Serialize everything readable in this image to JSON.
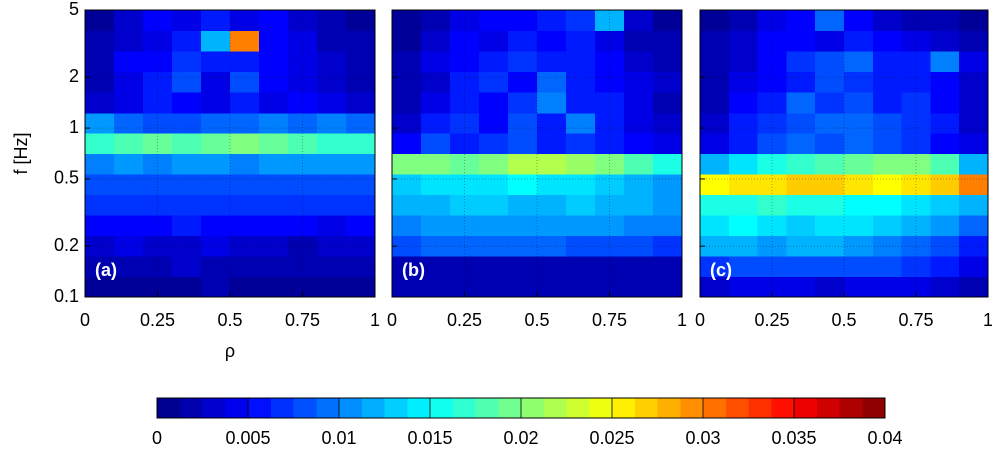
{
  "chart_data": [
    {
      "type": "heatmap",
      "label": "(a)",
      "ylabel": "f [Hz]",
      "xlabel": "ρ",
      "colormap": "jet",
      "log_y": true,
      "grid": true,
      "xlim": [
        0,
        1
      ],
      "ylim": [
        0.1,
        5
      ],
      "xticks": [
        0,
        0.25,
        0.5,
        0.75,
        1
      ],
      "yticks": [
        0.1,
        0.2,
        0.5,
        1,
        2,
        5
      ],
      "show_ytick_labels": true,
      "zlim": [
        0,
        0.04
      ],
      "xbins": [
        0,
        0.1,
        0.2,
        0.3,
        0.4,
        0.5,
        0.6,
        0.7,
        0.8,
        0.9,
        1
      ],
      "ybins": [
        0.1,
        0.132,
        0.175,
        0.231,
        0.305,
        0.404,
        0.534,
        0.706,
        0.933,
        1.23,
        1.63,
        2.16,
        2.85,
        3.77,
        5
      ],
      "z": [
        [
          0.001,
          0.001,
          0.001,
          0.001,
          0.002,
          0.001,
          0.001,
          0.001,
          0.001,
          0.001
        ],
        [
          0.002,
          0.002,
          0.002,
          0.003,
          0.002,
          0.002,
          0.002,
          0.002,
          0.002,
          0.002
        ],
        [
          0.003,
          0.004,
          0.003,
          0.003,
          0.004,
          0.003,
          0.003,
          0.002,
          0.003,
          0.003
        ],
        [
          0.005,
          0.005,
          0.005,
          0.006,
          0.005,
          0.005,
          0.005,
          0.005,
          0.004,
          0.005
        ],
        [
          0.007,
          0.007,
          0.007,
          0.007,
          0.007,
          0.007,
          0.007,
          0.007,
          0.007,
          0.007
        ],
        [
          0.008,
          0.008,
          0.008,
          0.008,
          0.008,
          0.008,
          0.008,
          0.008,
          0.008,
          0.008
        ],
        [
          0.01,
          0.011,
          0.01,
          0.011,
          0.011,
          0.01,
          0.011,
          0.011,
          0.011,
          0.011
        ],
        [
          0.017,
          0.018,
          0.019,
          0.018,
          0.019,
          0.02,
          0.019,
          0.018,
          0.017,
          0.017
        ],
        [
          0.011,
          0.009,
          0.008,
          0.008,
          0.009,
          0.009,
          0.01,
          0.009,
          0.01,
          0.009
        ],
        [
          0.003,
          0.004,
          0.006,
          0.005,
          0.004,
          0.006,
          0.004,
          0.005,
          0.004,
          0.003
        ],
        [
          0.002,
          0.004,
          0.006,
          0.008,
          0.004,
          0.008,
          0.005,
          0.004,
          0.003,
          0.002
        ],
        [
          0.002,
          0.005,
          0.005,
          0.007,
          0.006,
          0.006,
          0.005,
          0.004,
          0.003,
          0.002
        ],
        [
          0.002,
          0.003,
          0.004,
          0.006,
          0.012,
          0.03,
          0.005,
          0.004,
          0.002,
          0.002
        ],
        [
          0.001,
          0.003,
          0.005,
          0.004,
          0.006,
          0.004,
          0.005,
          0.003,
          0.002,
          0.001
        ]
      ]
    },
    {
      "type": "heatmap",
      "label": "(b)",
      "colormap": "jet",
      "log_y": true,
      "grid": true,
      "xlim": [
        0,
        1
      ],
      "ylim": [
        0.1,
        5
      ],
      "xticks": [
        0,
        0.25,
        0.5,
        0.75,
        1
      ],
      "yticks": [
        0.1,
        0.2,
        0.5,
        1,
        2,
        5
      ],
      "show_ytick_labels": false,
      "zlim": [
        0,
        0.04
      ],
      "xbins": [
        0,
        0.1,
        0.2,
        0.3,
        0.4,
        0.5,
        0.6,
        0.7,
        0.8,
        0.9,
        1
      ],
      "ybins": [
        0.1,
        0.132,
        0.175,
        0.231,
        0.305,
        0.404,
        0.534,
        0.706,
        0.933,
        1.23,
        1.63,
        2.16,
        2.85,
        3.77,
        5
      ],
      "z": [
        [
          0.002,
          0.002,
          0.002,
          0.002,
          0.002,
          0.002,
          0.002,
          0.002,
          0.002,
          0.002
        ],
        [
          0.002,
          0.002,
          0.002,
          0.002,
          0.002,
          0.002,
          0.002,
          0.002,
          0.002,
          0.002
        ],
        [
          0.008,
          0.009,
          0.009,
          0.009,
          0.009,
          0.009,
          0.008,
          0.008,
          0.008,
          0.007
        ],
        [
          0.01,
          0.011,
          0.011,
          0.011,
          0.011,
          0.011,
          0.011,
          0.011,
          0.01,
          0.01
        ],
        [
          0.012,
          0.012,
          0.013,
          0.013,
          0.012,
          0.012,
          0.013,
          0.012,
          0.012,
          0.011
        ],
        [
          0.013,
          0.014,
          0.014,
          0.014,
          0.015,
          0.014,
          0.014,
          0.013,
          0.012,
          0.011
        ],
        [
          0.02,
          0.02,
          0.019,
          0.02,
          0.022,
          0.022,
          0.021,
          0.02,
          0.018,
          0.016
        ],
        [
          0.005,
          0.008,
          0.006,
          0.007,
          0.008,
          0.006,
          0.007,
          0.006,
          0.005,
          0.004
        ],
        [
          0.003,
          0.006,
          0.007,
          0.005,
          0.008,
          0.006,
          0.01,
          0.006,
          0.004,
          0.003
        ],
        [
          0.002,
          0.004,
          0.006,
          0.005,
          0.007,
          0.01,
          0.006,
          0.006,
          0.004,
          0.002
        ],
        [
          0.002,
          0.003,
          0.006,
          0.007,
          0.005,
          0.009,
          0.006,
          0.005,
          0.004,
          0.003
        ],
        [
          0.002,
          0.004,
          0.005,
          0.006,
          0.007,
          0.006,
          0.006,
          0.005,
          0.003,
          0.002
        ],
        [
          0.001,
          0.003,
          0.005,
          0.004,
          0.006,
          0.005,
          0.006,
          0.004,
          0.002,
          0.002
        ],
        [
          0.001,
          0.002,
          0.004,
          0.005,
          0.005,
          0.006,
          0.007,
          0.012,
          0.003,
          0.001
        ]
      ]
    },
    {
      "type": "heatmap",
      "label": "(c)",
      "colormap": "jet",
      "log_y": true,
      "grid": true,
      "xlim": [
        0,
        1
      ],
      "ylim": [
        0.1,
        5
      ],
      "xticks": [
        0,
        0.25,
        0.5,
        0.75,
        1
      ],
      "yticks": [
        0.1,
        0.2,
        0.5,
        1,
        2,
        5
      ],
      "show_ytick_labels": false,
      "zlim": [
        0,
        0.04
      ],
      "xbins": [
        0,
        0.1,
        0.2,
        0.3,
        0.4,
        0.5,
        0.6,
        0.7,
        0.8,
        0.9,
        1
      ],
      "ybins": [
        0.1,
        0.132,
        0.175,
        0.231,
        0.305,
        0.404,
        0.534,
        0.706,
        0.933,
        1.23,
        1.63,
        2.16,
        2.85,
        3.77,
        5
      ],
      "z": [
        [
          0.003,
          0.004,
          0.004,
          0.004,
          0.003,
          0.004,
          0.004,
          0.004,
          0.003,
          0.002
        ],
        [
          0.007,
          0.008,
          0.008,
          0.008,
          0.008,
          0.008,
          0.008,
          0.007,
          0.006,
          0.004
        ],
        [
          0.012,
          0.012,
          0.011,
          0.012,
          0.012,
          0.011,
          0.01,
          0.009,
          0.008,
          0.006
        ],
        [
          0.014,
          0.015,
          0.014,
          0.013,
          0.014,
          0.014,
          0.013,
          0.012,
          0.011,
          0.009
        ],
        [
          0.016,
          0.016,
          0.017,
          0.016,
          0.016,
          0.015,
          0.015,
          0.014,
          0.013,
          0.012
        ],
        [
          0.025,
          0.026,
          0.026,
          0.027,
          0.027,
          0.026,
          0.025,
          0.026,
          0.027,
          0.03
        ],
        [
          0.012,
          0.014,
          0.016,
          0.017,
          0.018,
          0.019,
          0.02,
          0.02,
          0.018,
          0.012
        ],
        [
          0.004,
          0.006,
          0.008,
          0.009,
          0.008,
          0.009,
          0.008,
          0.007,
          0.005,
          0.004
        ],
        [
          0.003,
          0.006,
          0.007,
          0.008,
          0.009,
          0.009,
          0.008,
          0.007,
          0.006,
          0.003
        ],
        [
          0.002,
          0.005,
          0.006,
          0.009,
          0.007,
          0.008,
          0.006,
          0.007,
          0.005,
          0.003
        ],
        [
          0.002,
          0.004,
          0.005,
          0.006,
          0.008,
          0.007,
          0.006,
          0.006,
          0.005,
          0.003
        ],
        [
          0.002,
          0.003,
          0.005,
          0.007,
          0.008,
          0.009,
          0.006,
          0.006,
          0.01,
          0.004
        ],
        [
          0.002,
          0.003,
          0.005,
          0.005,
          0.004,
          0.006,
          0.005,
          0.004,
          0.003,
          0.002
        ],
        [
          0.001,
          0.002,
          0.004,
          0.005,
          0.009,
          0.005,
          0.003,
          0.002,
          0.002,
          0.001
        ]
      ]
    },
    {
      "type": "colorbar",
      "colormap": "jet",
      "zlim": [
        0,
        0.04
      ],
      "zticks": [
        0,
        0.005,
        0.01,
        0.015,
        0.02,
        0.025,
        0.03,
        0.035,
        0.04
      ]
    }
  ]
}
